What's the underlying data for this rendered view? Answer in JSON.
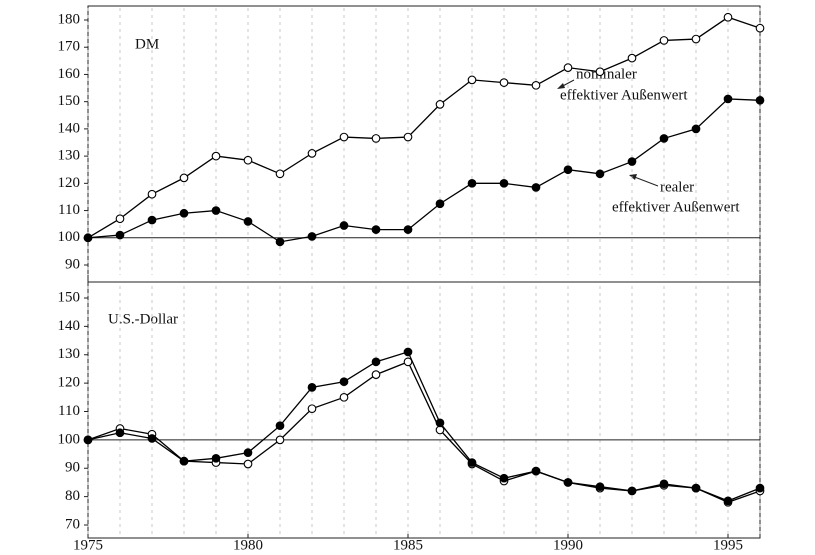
{
  "chart_data": [
    {
      "type": "line",
      "annotations": [
        "DM",
        "nominaler",
        "effektiver Außenwert",
        "realer",
        "effektiver Außenwert"
      ],
      "x": [
        1975,
        1976,
        1977,
        1978,
        1979,
        1980,
        1981,
        1982,
        1983,
        1984,
        1985,
        1986,
        1987,
        1988,
        1989,
        1990,
        1991,
        1992,
        1993,
        1994,
        1995,
        1996
      ],
      "xlim": [
        1975,
        1996
      ],
      "ylim": [
        90,
        180
      ],
      "yticks": [
        90,
        100,
        110,
        120,
        130,
        140,
        150,
        160,
        170,
        180
      ],
      "baseline": 100,
      "grid": true,
      "series": [
        {
          "color": "#000000",
          "marker": "open",
          "values": [
            100,
            107,
            116,
            122,
            130,
            128.5,
            123.5,
            131,
            137,
            136.5,
            137,
            149,
            158,
            157,
            156,
            162.5,
            161,
            166,
            172.5,
            173,
            181,
            177
          ]
        },
        {
          "color": "#000000",
          "marker": "filled",
          "values": [
            100,
            101,
            106.5,
            109,
            110,
            106,
            98.5,
            100.5,
            104.5,
            103,
            103,
            112.5,
            120,
            120,
            118.5,
            125,
            123.5,
            128,
            136.5,
            140,
            151,
            150.5
          ]
        }
      ]
    },
    {
      "type": "line",
      "annotations": [
        "U.S.-Dollar"
      ],
      "x": [
        1975,
        1976,
        1977,
        1978,
        1979,
        1980,
        1981,
        1982,
        1983,
        1984,
        1985,
        1986,
        1987,
        1988,
        1989,
        1990,
        1991,
        1992,
        1993,
        1994,
        1995,
        1996
      ],
      "xlim": [
        1975,
        1996
      ],
      "xticks": [
        1975,
        1980,
        1985,
        1990,
        1995
      ],
      "ylim": [
        70,
        150
      ],
      "yticks": [
        70,
        80,
        90,
        100,
        110,
        120,
        130,
        140,
        150
      ],
      "baseline": 100,
      "grid": true,
      "series": [
        {
          "color": "#000000",
          "marker": "open",
          "values": [
            100,
            104,
            102,
            92.5,
            92,
            91.5,
            100,
            111,
            115,
            123,
            127.5,
            103.5,
            91.5,
            85.5,
            89,
            85,
            83,
            82,
            84,
            83,
            78,
            82
          ]
        },
        {
          "color": "#000000",
          "marker": "filled",
          "values": [
            100,
            102.5,
            100.5,
            92.5,
            93.5,
            95.5,
            105,
            118.5,
            120.5,
            127.5,
            131,
            106,
            92,
            86.5,
            89,
            85,
            83.5,
            82,
            84.5,
            83,
            78.5,
            83
          ]
        }
      ]
    }
  ]
}
